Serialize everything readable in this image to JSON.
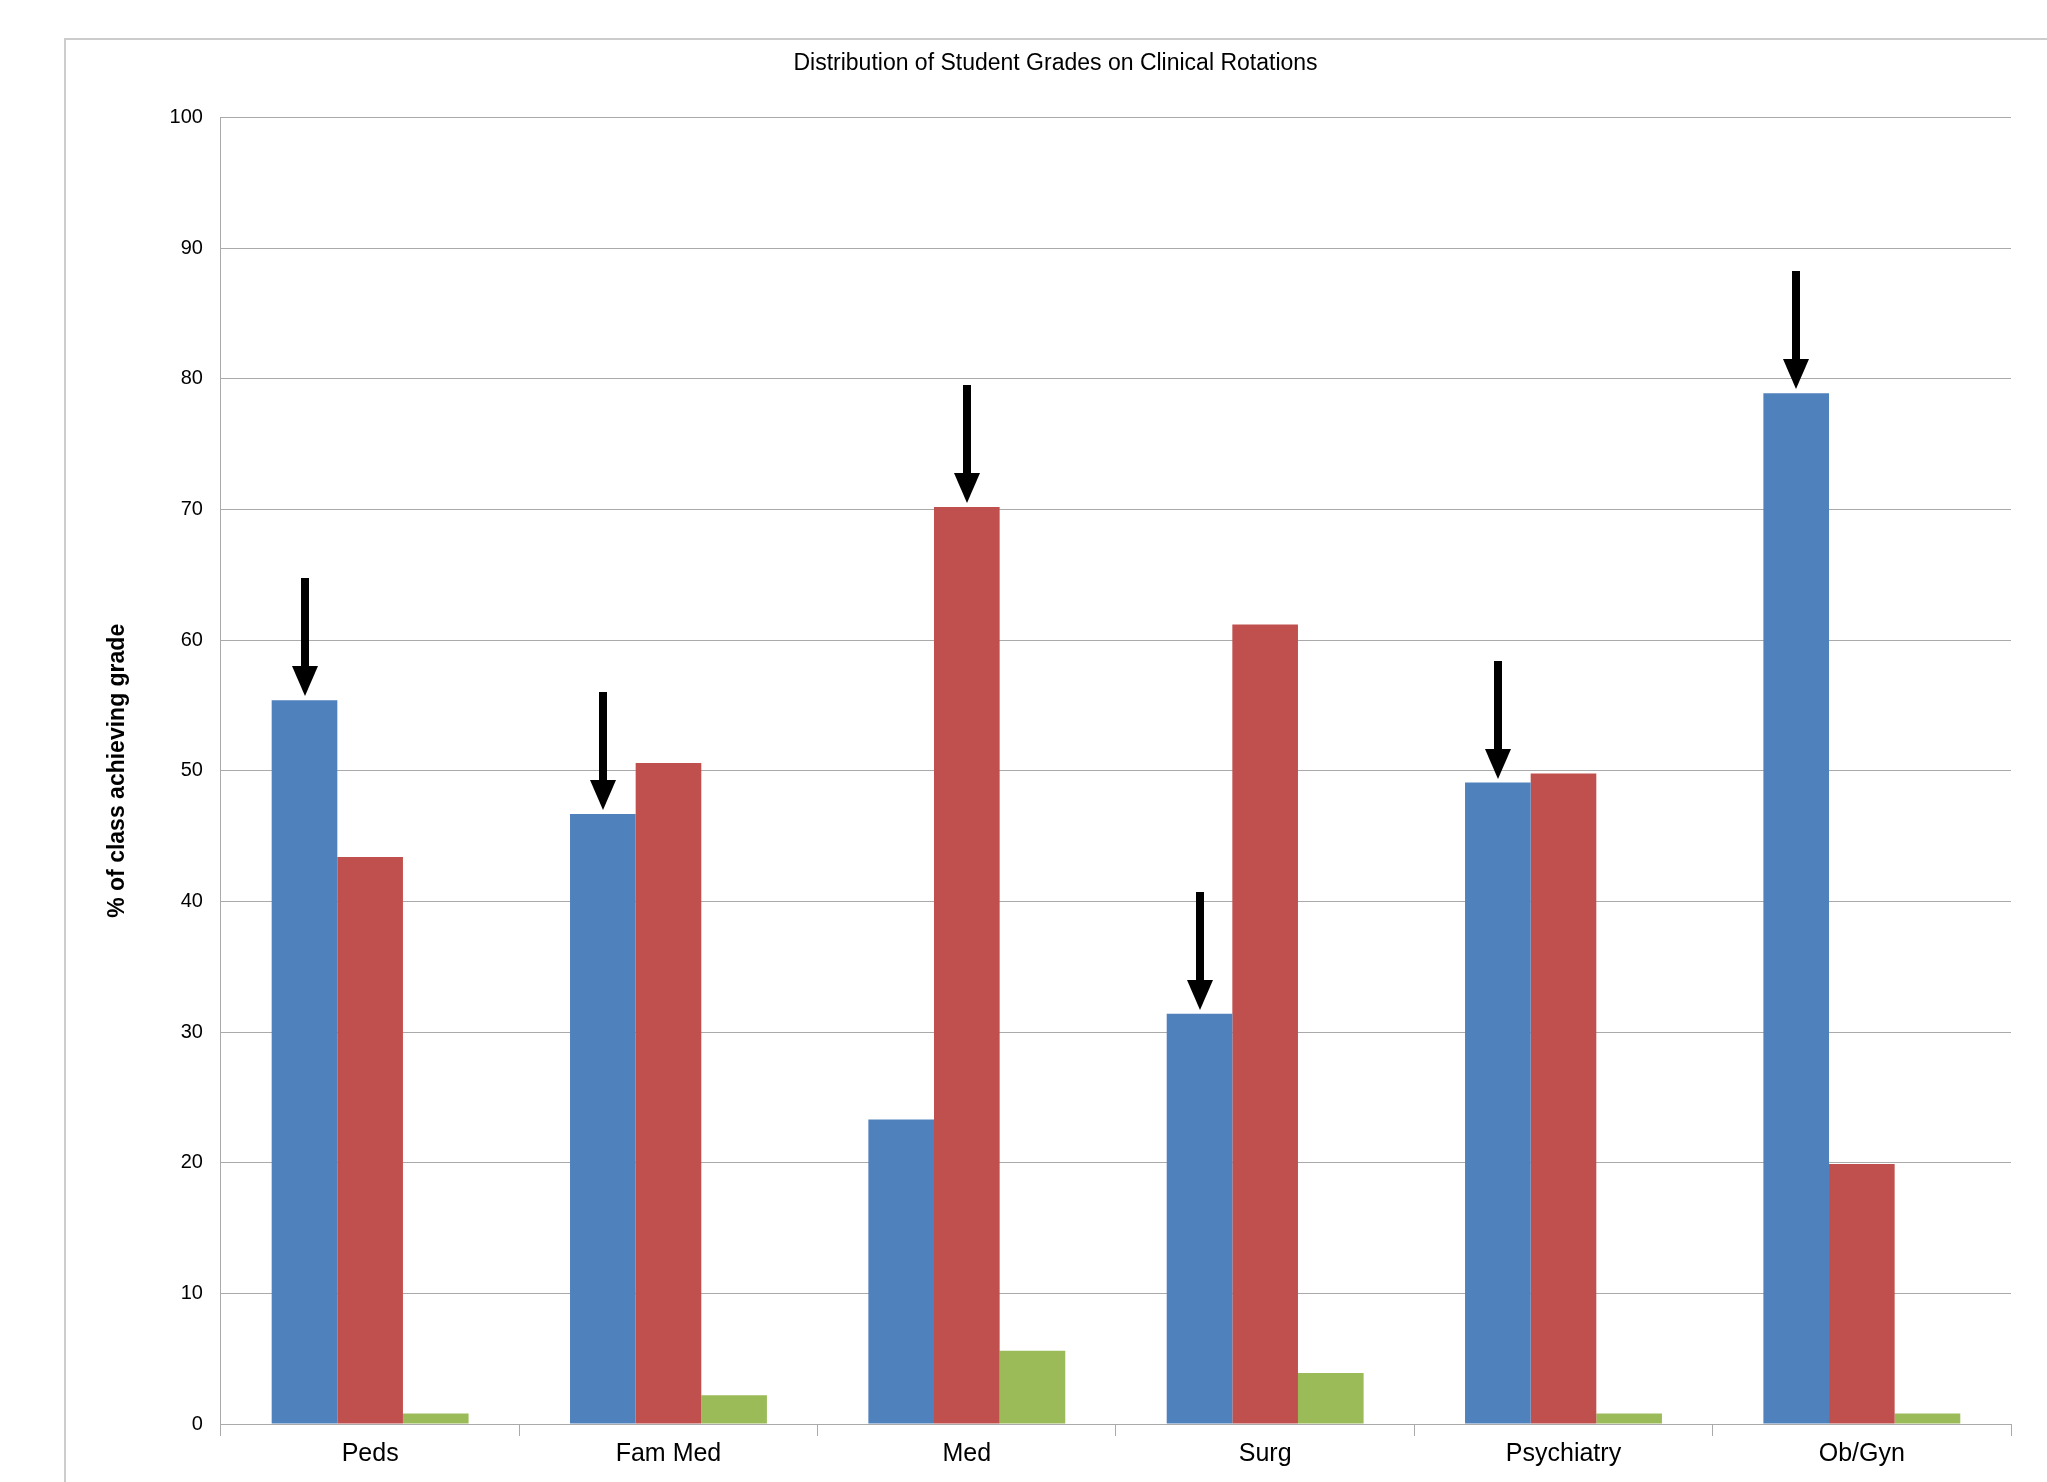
{
  "chart_data": {
    "type": "bar",
    "title": "Distribution of Student Grades on Clinical Rotations",
    "ylabel": "% of class achieving grade",
    "categories": [
      "Peds",
      "Fam Med",
      "Med",
      "Surg",
      "Psychiatry",
      "Ob/Gyn"
    ],
    "series": [
      {
        "color": "#4f81bd",
        "values": [
          55.4,
          46.7,
          23.3,
          31.4,
          49.1,
          78.9
        ]
      },
      {
        "color": "#c0504d",
        "values": [
          43.4,
          50.6,
          70.2,
          61.2,
          49.8,
          19.9
        ]
      },
      {
        "color": "#9bbb59",
        "values": [
          0.8,
          2.2,
          5.6,
          3.9,
          0.8,
          0.8
        ]
      }
    ],
    "ylim": [
      0,
      100
    ],
    "yticks": [
      0,
      10,
      20,
      30,
      40,
      50,
      60,
      70,
      80,
      90,
      100
    ],
    "grid": "y",
    "legend": false
  }
}
